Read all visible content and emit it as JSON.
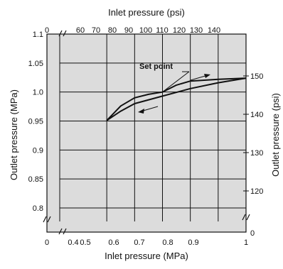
{
  "chart_data": {
    "type": "line",
    "title": "",
    "xlabel_bottom": "Inlet pressure (MPa)",
    "xlabel_top": "Inlet pressure (psi)",
    "ylabel_left": "Outlet pressure (MPa)",
    "ylabel_right": "Outlet pressure (psi)",
    "grid": true,
    "xlim": [
      0.4,
      1.0
    ],
    "ylim": [
      0.8,
      1.1
    ],
    "x_ticks_bottom": [
      "0",
      "0.4",
      "0.5",
      "0.6",
      "0.7",
      "0.8",
      "0.9",
      "1"
    ],
    "x_ticks_top": [
      "0",
      "60",
      "70",
      "80",
      "90",
      "100",
      "110",
      "120",
      "130",
      "140"
    ],
    "y_ticks_left": [
      "0.8",
      "0.85",
      "0.9",
      "0.95",
      "1.0",
      "1.05",
      "1.1"
    ],
    "y_ticks_right": [
      "0",
      "120",
      "130",
      "140",
      "150"
    ],
    "annotation": "Set point",
    "series": [
      {
        "direction": "increasing",
        "x": [
          0.5,
          0.55,
          0.6,
          0.65,
          0.7,
          0.75,
          0.8,
          0.9,
          1.0
        ],
        "y": [
          0.951,
          0.976,
          0.99,
          0.996,
          1.0,
          1.012,
          1.019,
          1.022,
          1.024
        ]
      },
      {
        "direction": "decreasing",
        "x": [
          1.0,
          0.9,
          0.8,
          0.7,
          0.6,
          0.55,
          0.5
        ],
        "y": [
          1.024,
          1.016,
          1.006,
          0.993,
          0.98,
          0.967,
          0.951
        ]
      }
    ]
  }
}
